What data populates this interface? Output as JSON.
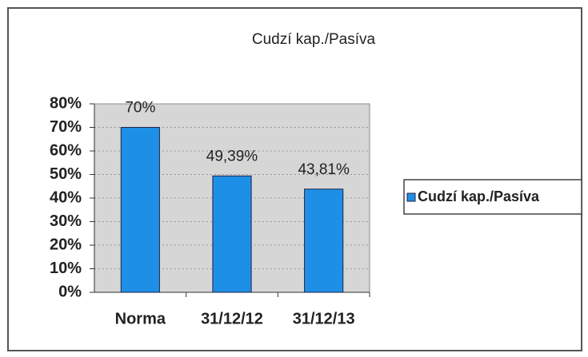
{
  "chart_data": {
    "type": "bar",
    "title": "Cudzí kap./Pasíva",
    "categories": [
      "Norma",
      "31/12/12",
      "31/12/13"
    ],
    "series": [
      {
        "name": "Cudzí kap./Pasíva",
        "color": "#1e8fe6",
        "values": [
          70,
          49.39,
          43.81
        ],
        "value_labels": [
          "70%",
          "49,39%",
          "43,81%"
        ]
      }
    ],
    "ylim": [
      0,
      80
    ],
    "yticks": [
      {
        "value": 0,
        "label": "0%"
      },
      {
        "value": 10,
        "label": "10%"
      },
      {
        "value": 20,
        "label": "20%"
      },
      {
        "value": 30,
        "label": "30%"
      },
      {
        "value": 40,
        "label": "40%"
      },
      {
        "value": 50,
        "label": "50%"
      },
      {
        "value": 60,
        "label": "60%"
      },
      {
        "value": 70,
        "label": "70%"
      },
      {
        "value": 80,
        "label": "80%"
      }
    ],
    "grid": true,
    "legend": "right"
  }
}
